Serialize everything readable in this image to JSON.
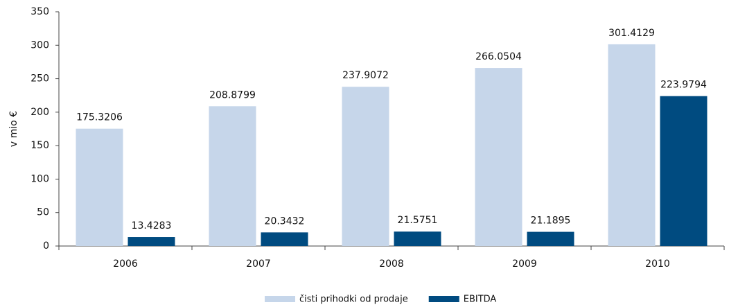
{
  "chart_data": {
    "type": "bar",
    "y_label": "v mio €",
    "categories": [
      "2006",
      "2007",
      "2008",
      "2009",
      "2010"
    ],
    "series": [
      {
        "name": "čisti prihodki od prodaje",
        "color": "#c6d6ea",
        "values": [
          175.3206,
          208.8799,
          237.9072,
          266.0504,
          301.4129
        ]
      },
      {
        "name": "EBITDA",
        "color": "#004b80",
        "values": [
          13.4283,
          20.3432,
          21.5751,
          21.1895,
          223.9794
        ]
      }
    ],
    "ylim": [
      0,
      350
    ],
    "yticks": [
      0,
      50,
      100,
      150,
      200,
      250,
      300,
      350
    ],
    "grid": false,
    "legend": "bottom"
  }
}
